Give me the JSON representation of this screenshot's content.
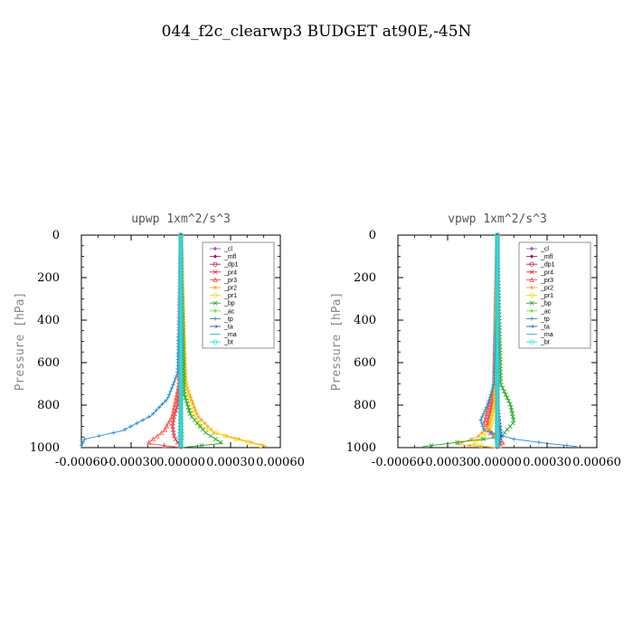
{
  "title": "044_f2c_clearwp3  BUDGET at90E,-45N",
  "legend_items": [
    {
      "label": "_cl",
      "color": "#9b59b6",
      "marker": "diamond"
    },
    {
      "label": "_mfl",
      "color": "#8e1f6e",
      "marker": "diamond"
    },
    {
      "label": "_dp1",
      "color": "#b0285a",
      "marker": "circle"
    },
    {
      "label": "_pr4",
      "color": "#e3333f",
      "marker": "x"
    },
    {
      "label": "_pr3",
      "color": "#ff5040",
      "marker": "triangle"
    },
    {
      "label": "_pr2",
      "color": "#ffa020",
      "marker": "star"
    },
    {
      "label": "_pr1",
      "color": "#f0e020",
      "marker": "circle"
    },
    {
      "label": "_bp",
      "color": "#22aa22",
      "marker": "x"
    },
    {
      "label": "_ac",
      "color": "#66ee44",
      "marker": "diamond"
    },
    {
      "label": "_tp",
      "color": "#1f88cc",
      "marker": "plus"
    },
    {
      "label": "_ta",
      "color": "#2255cc",
      "marker": "arrow"
    },
    {
      "label": "_ma",
      "color": "#30c0c0",
      "marker": "dash"
    },
    {
      "label": "_bt",
      "color": "#30e0e0",
      "marker": "circle"
    }
  ],
  "chart_data": [
    {
      "type": "line",
      "title": "upwp   1xm^2/s^3",
      "ylabel": "Pressure [hPa]",
      "xlim": [
        -0.0006,
        0.0006
      ],
      "ylim": [
        1000,
        0
      ],
      "yticks": [
        0,
        200,
        400,
        600,
        800,
        1000
      ],
      "xtick_labels": [
        "-0.00060",
        "-0.00030",
        "0.00000",
        "0.00030",
        "0.00060"
      ],
      "xticks": [
        -0.0006,
        -0.0003,
        0.0,
        0.0003,
        0.0006
      ],
      "legend": "top-right",
      "series": [
        {
          "name": "_cl",
          "x": [
            0,
            0,
            0,
            0,
            0
          ],
          "y": [
            0,
            250,
            500,
            750,
            1000
          ]
        },
        {
          "name": "_mfl",
          "x": [
            0,
            0,
            0,
            0,
            0
          ],
          "y": [
            0,
            250,
            500,
            750,
            1000
          ]
        },
        {
          "name": "_dp1",
          "x": [
            0,
            0,
            0,
            0,
            0
          ],
          "y": [
            0,
            250,
            500,
            750,
            1000
          ]
        },
        {
          "name": "_pr4",
          "x": [
            0,
            0,
            -2e-05,
            -4e-05,
            -5e-05,
            -4e-05,
            0
          ],
          "y": [
            0,
            600,
            800,
            850,
            900,
            950,
            1000
          ]
        },
        {
          "name": "_pr3",
          "x": [
            0,
            -1e-05,
            -5e-05,
            -0.0001,
            -0.0002,
            0
          ],
          "y": [
            0,
            700,
            850,
            920,
            980,
            1000
          ]
        },
        {
          "name": "_pr2",
          "x": [
            0,
            3e-05,
            0.0001,
            0.0002,
            0.0004,
            0.00052
          ],
          "y": [
            0,
            700,
            850,
            930,
            970,
            995
          ]
        },
        {
          "name": "_pr1",
          "x": [
            0,
            2e-05,
            5e-05,
            0.00012,
            0.00028,
            0.00048
          ],
          "y": [
            0,
            650,
            800,
            900,
            950,
            990
          ]
        },
        {
          "name": "_bp",
          "x": [
            0,
            2e-05,
            6e-05,
            0.00015,
            0.00025,
            0
          ],
          "y": [
            0,
            750,
            850,
            930,
            980,
            1000
          ]
        },
        {
          "name": "_ac",
          "x": [
            0,
            0,
            1e-05,
            0
          ],
          "y": [
            0,
            800,
            950,
            1000
          ]
        },
        {
          "name": "_tp",
          "x": [
            0,
            -2e-05,
            -8e-05,
            -0.00018,
            -0.00035,
            -0.00058,
            -0.0006
          ],
          "y": [
            0,
            650,
            770,
            850,
            920,
            960,
            990
          ]
        },
        {
          "name": "_ta",
          "x": [
            0,
            0,
            -1e-05,
            0
          ],
          "y": [
            0,
            800,
            950,
            1000
          ]
        },
        {
          "name": "_ma",
          "x": [
            0,
            0,
            0
          ],
          "y": [
            0,
            900,
            1000
          ]
        },
        {
          "name": "_bt",
          "x": [
            0,
            0,
            0
          ],
          "y": [
            0,
            900,
            1000
          ]
        }
      ]
    },
    {
      "type": "line",
      "title": "vpwp   1xm^2/s^3",
      "ylabel": "Pressure [hPa]",
      "xlim": [
        -0.0006,
        0.0006
      ],
      "ylim": [
        1000,
        0
      ],
      "yticks": [
        0,
        200,
        400,
        600,
        800,
        1000
      ],
      "xtick_labels": [
        "-0.00060",
        "-0.00030",
        "0.00000",
        "0.00030",
        "0.00060"
      ],
      "xticks": [
        -0.0006,
        -0.0003,
        0.0,
        0.0003,
        0.0006
      ],
      "legend": "top-right",
      "series": [
        {
          "name": "_cl",
          "x": [
            0,
            0,
            0,
            0,
            0
          ],
          "y": [
            0,
            250,
            500,
            750,
            1000
          ]
        },
        {
          "name": "_mfl",
          "x": [
            0,
            0,
            0,
            0,
            0
          ],
          "y": [
            0,
            250,
            500,
            750,
            1000
          ]
        },
        {
          "name": "_dp1",
          "x": [
            0,
            0,
            0,
            0,
            0
          ],
          "y": [
            0,
            250,
            500,
            750,
            1000
          ]
        },
        {
          "name": "_pr4",
          "x": [
            0,
            -1e-05,
            -4e-05,
            -6e-05,
            -4e-05,
            1e-05,
            0
          ],
          "y": [
            0,
            700,
            820,
            880,
            930,
            970,
            1000
          ]
        },
        {
          "name": "_pr3",
          "x": [
            0,
            -2e-05,
            -6e-05,
            -8e-05,
            -3e-05,
            4e-05,
            0
          ],
          "y": [
            0,
            720,
            830,
            890,
            940,
            980,
            1000
          ]
        },
        {
          "name": "_pr2",
          "x": [
            0,
            -2e-05,
            -5e-05,
            -0.00012,
            -0.00025,
            0
          ],
          "y": [
            0,
            800,
            900,
            950,
            985,
            1000
          ]
        },
        {
          "name": "_pr1",
          "x": [
            0,
            -1e-05,
            -4e-05,
            -9e-05,
            -0.00015,
            0
          ],
          "y": [
            0,
            800,
            900,
            950,
            985,
            1000
          ]
        },
        {
          "name": "_bp",
          "x": [
            0,
            2e-05,
            8e-05,
            0.0001,
            2e-05,
            -0.00045
          ],
          "y": [
            0,
            700,
            800,
            880,
            950,
            995
          ]
        },
        {
          "name": "_ac",
          "x": [
            0,
            0,
            -1e-05,
            0
          ],
          "y": [
            0,
            800,
            950,
            1000
          ]
        },
        {
          "name": "_tp",
          "x": [
            0,
            -2e-05,
            -6e-05,
            -0.0001,
            -8e-05,
            0.0001,
            0.0003,
            0.00048
          ],
          "y": [
            0,
            700,
            800,
            870,
            920,
            960,
            980,
            995
          ]
        },
        {
          "name": "_ta",
          "x": [
            0,
            0,
            2e-05,
            0
          ],
          "y": [
            0,
            800,
            950,
            1000
          ]
        },
        {
          "name": "_ma",
          "x": [
            0,
            0,
            0
          ],
          "y": [
            0,
            900,
            1000
          ]
        },
        {
          "name": "_bt",
          "x": [
            0,
            0,
            0
          ],
          "y": [
            0,
            900,
            1000
          ]
        }
      ]
    }
  ]
}
